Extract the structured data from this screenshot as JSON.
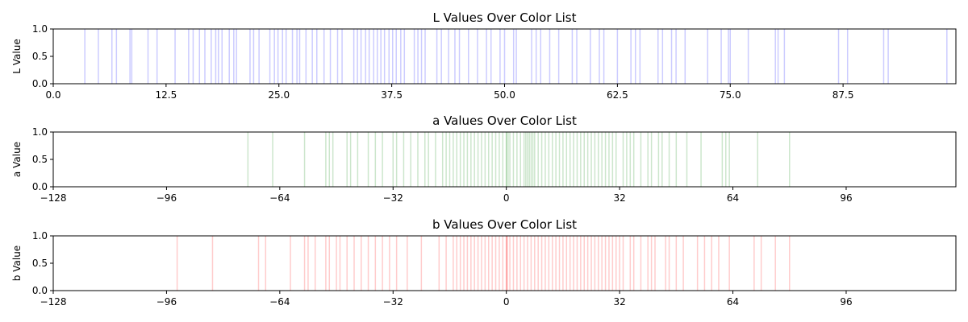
{
  "chart_data": [
    {
      "type": "rug",
      "title": "L Values Over Color List",
      "ylabel": "L Value",
      "xlabel": "",
      "color": "#0000ff",
      "xlim": [
        0,
        100
      ],
      "ylim": [
        0,
        1
      ],
      "xticks": [
        0.0,
        12.5,
        25.0,
        37.5,
        50.0,
        62.5,
        75.0,
        87.5
      ],
      "xtick_labels": [
        "0.0",
        "12.5",
        "25.0",
        "37.5",
        "50.0",
        "62.5",
        "75.0",
        "87.5"
      ],
      "yticks": [
        0.0,
        0.5,
        1.0
      ],
      "ytick_labels": [
        "0.0",
        "0.5",
        "1.0"
      ],
      "grid": false,
      "values": [
        3.5,
        5.0,
        6.5,
        7.0,
        8.5,
        8.7,
        10.5,
        11.5,
        13.5,
        15.0,
        15.5,
        16.2,
        16.8,
        17.5,
        18.0,
        18.3,
        18.7,
        19.5,
        20.0,
        20.3,
        21.8,
        22.2,
        22.8,
        24.0,
        24.5,
        24.9,
        25.4,
        25.8,
        26.5,
        27.0,
        27.3,
        28.0,
        28.7,
        29.2,
        30.0,
        30.7,
        31.5,
        32.0,
        33.3,
        33.7,
        34.1,
        34.6,
        35.0,
        35.5,
        35.9,
        36.3,
        36.7,
        37.2,
        37.6,
        38.0,
        38.5,
        38.9,
        40.0,
        40.4,
        40.8,
        41.2,
        42.5,
        43.0,
        43.8,
        44.5,
        45.0,
        46.0,
        47.0,
        48.0,
        48.5,
        49.5,
        50.0,
        51.0,
        51.3,
        53.0,
        53.5,
        54.0,
        55.0,
        56.0,
        57.5,
        58.0,
        59.5,
        60.5,
        61.0,
        62.5,
        64.0,
        64.5,
        65.0,
        67.0,
        67.5,
        68.5,
        69.0,
        70.0,
        72.5,
        74.0,
        74.8,
        75.0,
        77.0,
        80.0,
        80.3,
        81.0,
        87.0,
        88.0,
        92.0,
        92.5,
        99.0
      ]
    },
    {
      "type": "rug",
      "title": "a Values Over Color List",
      "ylabel": "a Value",
      "xlabel": "",
      "color": "#008000",
      "xlim": [
        -128,
        127
      ],
      "ylim": [
        0,
        1
      ],
      "xticks": [
        -128,
        -96,
        -64,
        -32,
        0,
        32,
        64,
        96
      ],
      "xtick_labels": [
        "−128",
        "−96",
        "−64",
        "−32",
        "0",
        "32",
        "64",
        "96"
      ],
      "yticks": [
        0.0,
        0.5,
        1.0
      ],
      "ytick_labels": [
        "0.0",
        "0.5",
        "1.0"
      ],
      "grid": false,
      "values": [
        -73,
        -66,
        -57,
        -51,
        -50,
        -49,
        -45,
        -44,
        -42,
        -39,
        -37,
        -35,
        -32,
        -31,
        -29,
        -27,
        -25,
        -23,
        -22,
        -20,
        -18,
        -17,
        -16,
        -15,
        -14,
        -13,
        -12,
        -11,
        -10,
        -9,
        -8,
        -7,
        -6,
        -5,
        -4,
        -3,
        -2,
        -1,
        0,
        0,
        0.5,
        1,
        2,
        3,
        4,
        5,
        5.5,
        6,
        6.5,
        7,
        7.5,
        8,
        9,
        10,
        11,
        12,
        13,
        14,
        15,
        16,
        17,
        18,
        19,
        20,
        21,
        22,
        23,
        24,
        25,
        26,
        27,
        28,
        29,
        30,
        31,
        33,
        34,
        35,
        36,
        38,
        40,
        41,
        43,
        44,
        46,
        48,
        51,
        55,
        61,
        62,
        63,
        71,
        80
      ]
    },
    {
      "type": "rug",
      "title": "b Values Over Color List",
      "ylabel": "b Value",
      "xlabel": "",
      "color": "#ff0000",
      "xlim": [
        -128,
        127
      ],
      "ylim": [
        0,
        1
      ],
      "xticks": [
        -128,
        -96,
        -64,
        -32,
        0,
        32,
        64,
        96
      ],
      "xtick_labels": [
        "−128",
        "−96",
        "−64",
        "−32",
        "0",
        "32",
        "64",
        "96"
      ],
      "yticks": [
        0.0,
        0.5,
        1.0
      ],
      "ytick_labels": [
        "0.0",
        "0.5",
        "1.0"
      ],
      "grid": false,
      "values": [
        -93,
        -83,
        -70,
        -68,
        -61,
        -57,
        -56,
        -54,
        -51,
        -50,
        -48,
        -47,
        -45,
        -43,
        -41,
        -39,
        -37,
        -35,
        -33,
        -31,
        -28,
        -24,
        -19,
        -17,
        -15,
        -14,
        -13,
        -12,
        -11,
        -10,
        -9,
        -8,
        -7,
        -6,
        -5,
        -4,
        -3,
        -2,
        -1,
        0,
        0,
        0.3,
        1,
        2,
        3,
        4,
        5,
        6,
        7,
        8,
        9,
        10,
        11,
        12,
        13,
        14,
        15,
        16,
        17,
        18,
        19,
        20,
        21,
        22,
        23,
        24,
        25,
        26,
        27,
        28,
        29,
        30,
        31,
        32,
        33,
        35,
        36,
        38,
        40,
        41,
        42,
        45,
        46,
        48,
        50,
        54,
        56,
        58,
        60,
        63,
        70,
        72,
        76,
        80
      ]
    }
  ]
}
